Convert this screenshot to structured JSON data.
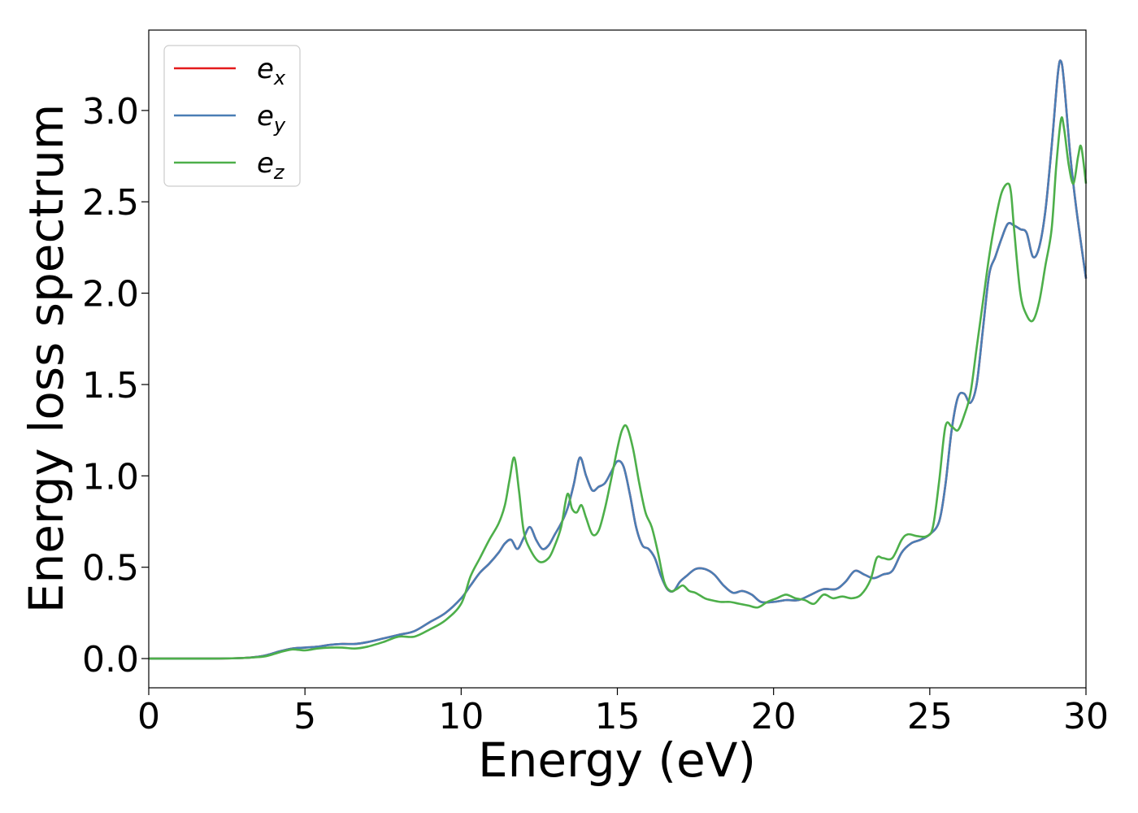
{
  "chart_data": {
    "type": "line",
    "xlabel": "Energy (eV)",
    "ylabel": "Energy loss spectrum",
    "xlim": [
      0,
      30
    ],
    "ylim": [
      -0.16,
      3.44
    ],
    "xticks": [
      0,
      5,
      10,
      15,
      20,
      25,
      30
    ],
    "xtick_labels": [
      "0",
      "5",
      "10",
      "15",
      "20",
      "25",
      "30"
    ],
    "yticks": [
      0.0,
      0.5,
      1.0,
      1.5,
      2.0,
      2.5,
      3.0
    ],
    "ytick_labels": [
      "0.0",
      "0.5",
      "1.0",
      "1.5",
      "2.0",
      "2.5",
      "3.0"
    ],
    "grid": false,
    "legend_position": "top-left",
    "series": [
      {
        "name": "e_x",
        "legend_base": "e",
        "legend_sub": "x",
        "color": "#e41a1c",
        "x": [
          0,
          2,
          3,
          3.5,
          3.8,
          4.2,
          4.6,
          5.0,
          5.4,
          5.8,
          6.2,
          6.6,
          7.0,
          7.5,
          8.0,
          8.5,
          9.0,
          9.5,
          10.0,
          10.3,
          10.6,
          10.9,
          11.2,
          11.4,
          11.6,
          11.8,
          12.0,
          12.2,
          12.4,
          12.6,
          12.8,
          13.0,
          13.2,
          13.4,
          13.6,
          13.8,
          14.0,
          14.2,
          14.4,
          14.6,
          14.8,
          15.0,
          15.2,
          15.4,
          15.6,
          15.8,
          16.0,
          16.2,
          16.4,
          16.6,
          16.8,
          17.0,
          17.2,
          17.5,
          17.8,
          18.1,
          18.4,
          18.7,
          19.0,
          19.3,
          19.6,
          20.0,
          20.4,
          20.8,
          21.2,
          21.6,
          22.0,
          22.3,
          22.6,
          22.9,
          23.2,
          23.5,
          23.8,
          24.1,
          24.4,
          24.7,
          25.0,
          25.3,
          25.5,
          25.7,
          25.9,
          26.1,
          26.3,
          26.5,
          26.7,
          26.9,
          27.1,
          27.3,
          27.5,
          27.7,
          27.9,
          28.1,
          28.3,
          28.5,
          28.7,
          28.9,
          29.1,
          29.2,
          29.3,
          29.5,
          29.7,
          30.0
        ],
        "values": [
          0,
          0,
          0.003,
          0.01,
          0.02,
          0.04,
          0.055,
          0.06,
          0.065,
          0.075,
          0.08,
          0.08,
          0.09,
          0.11,
          0.13,
          0.15,
          0.2,
          0.25,
          0.33,
          0.4,
          0.47,
          0.52,
          0.58,
          0.63,
          0.65,
          0.6,
          0.66,
          0.72,
          0.65,
          0.6,
          0.62,
          0.68,
          0.74,
          0.82,
          0.95,
          1.1,
          1.0,
          0.92,
          0.94,
          0.96,
          1.02,
          1.08,
          1.05,
          0.9,
          0.72,
          0.62,
          0.6,
          0.55,
          0.45,
          0.38,
          0.37,
          0.42,
          0.45,
          0.49,
          0.49,
          0.46,
          0.4,
          0.36,
          0.37,
          0.35,
          0.31,
          0.31,
          0.32,
          0.32,
          0.35,
          0.38,
          0.38,
          0.42,
          0.48,
          0.46,
          0.44,
          0.46,
          0.48,
          0.58,
          0.63,
          0.65,
          0.68,
          0.75,
          0.95,
          1.25,
          1.43,
          1.45,
          1.4,
          1.5,
          1.8,
          2.1,
          2.2,
          2.3,
          2.38,
          2.37,
          2.35,
          2.33,
          2.2,
          2.25,
          2.45,
          2.8,
          3.2,
          3.27,
          3.15,
          2.75,
          2.45,
          2.08
        ]
      },
      {
        "name": "e_y",
        "legend_base": "e",
        "legend_sub": "y",
        "color": "#4a7eb5",
        "x": [
          0,
          2,
          3,
          3.5,
          3.8,
          4.2,
          4.6,
          5.0,
          5.4,
          5.8,
          6.2,
          6.6,
          7.0,
          7.5,
          8.0,
          8.5,
          9.0,
          9.5,
          10.0,
          10.3,
          10.6,
          10.9,
          11.2,
          11.4,
          11.6,
          11.8,
          12.0,
          12.2,
          12.4,
          12.6,
          12.8,
          13.0,
          13.2,
          13.4,
          13.6,
          13.8,
          14.0,
          14.2,
          14.4,
          14.6,
          14.8,
          15.0,
          15.2,
          15.4,
          15.6,
          15.8,
          16.0,
          16.2,
          16.4,
          16.6,
          16.8,
          17.0,
          17.2,
          17.5,
          17.8,
          18.1,
          18.4,
          18.7,
          19.0,
          19.3,
          19.6,
          20.0,
          20.4,
          20.8,
          21.2,
          21.6,
          22.0,
          22.3,
          22.6,
          22.9,
          23.2,
          23.5,
          23.8,
          24.1,
          24.4,
          24.7,
          25.0,
          25.3,
          25.5,
          25.7,
          25.9,
          26.1,
          26.3,
          26.5,
          26.7,
          26.9,
          27.1,
          27.3,
          27.5,
          27.7,
          27.9,
          28.1,
          28.3,
          28.5,
          28.7,
          28.9,
          29.1,
          29.2,
          29.3,
          29.5,
          29.7,
          30.0
        ],
        "values": [
          0,
          0,
          0.003,
          0.01,
          0.02,
          0.04,
          0.055,
          0.06,
          0.065,
          0.075,
          0.08,
          0.08,
          0.09,
          0.11,
          0.13,
          0.15,
          0.2,
          0.25,
          0.33,
          0.4,
          0.47,
          0.52,
          0.58,
          0.63,
          0.65,
          0.6,
          0.66,
          0.72,
          0.65,
          0.6,
          0.62,
          0.68,
          0.74,
          0.82,
          0.95,
          1.1,
          1.0,
          0.92,
          0.94,
          0.96,
          1.02,
          1.08,
          1.05,
          0.9,
          0.72,
          0.62,
          0.6,
          0.55,
          0.45,
          0.38,
          0.37,
          0.42,
          0.45,
          0.49,
          0.49,
          0.46,
          0.4,
          0.36,
          0.37,
          0.35,
          0.31,
          0.31,
          0.32,
          0.32,
          0.35,
          0.38,
          0.38,
          0.42,
          0.48,
          0.46,
          0.44,
          0.46,
          0.48,
          0.58,
          0.63,
          0.65,
          0.68,
          0.75,
          0.95,
          1.25,
          1.43,
          1.45,
          1.4,
          1.5,
          1.8,
          2.1,
          2.2,
          2.3,
          2.38,
          2.37,
          2.35,
          2.33,
          2.2,
          2.25,
          2.45,
          2.8,
          3.2,
          3.27,
          3.15,
          2.75,
          2.45,
          2.08
        ]
      },
      {
        "name": "e_z",
        "legend_base": "e",
        "legend_sub": "z",
        "color": "#4daf4a",
        "x": [
          0,
          2,
          3,
          3.5,
          3.8,
          4.2,
          4.6,
          5.0,
          5.4,
          5.8,
          6.2,
          6.6,
          7.0,
          7.5,
          8.0,
          8.5,
          9.0,
          9.5,
          10.0,
          10.3,
          10.6,
          10.9,
          11.2,
          11.4,
          11.55,
          11.7,
          11.85,
          12.0,
          12.2,
          12.5,
          12.8,
          13.0,
          13.2,
          13.4,
          13.55,
          13.7,
          13.85,
          14.0,
          14.2,
          14.4,
          14.6,
          14.8,
          15.0,
          15.15,
          15.3,
          15.5,
          15.7,
          15.9,
          16.1,
          16.3,
          16.5,
          16.7,
          16.9,
          17.1,
          17.3,
          17.5,
          17.8,
          18.0,
          18.3,
          18.6,
          18.9,
          19.2,
          19.5,
          19.8,
          20.1,
          20.4,
          20.7,
          21.0,
          21.3,
          21.6,
          21.9,
          22.2,
          22.5,
          22.8,
          23.1,
          23.3,
          23.5,
          23.8,
          24.1,
          24.3,
          24.6,
          24.9,
          25.1,
          25.3,
          25.5,
          25.7,
          25.9,
          26.1,
          26.3,
          26.5,
          26.7,
          26.9,
          27.1,
          27.3,
          27.5,
          27.6,
          27.7,
          27.9,
          28.1,
          28.3,
          28.5,
          28.7,
          28.9,
          29.05,
          29.2,
          29.3,
          29.45,
          29.6,
          29.75,
          29.85,
          30.0
        ],
        "values": [
          0,
          0,
          0.003,
          0.008,
          0.015,
          0.035,
          0.05,
          0.045,
          0.055,
          0.06,
          0.06,
          0.055,
          0.065,
          0.09,
          0.12,
          0.12,
          0.16,
          0.21,
          0.3,
          0.45,
          0.55,
          0.65,
          0.74,
          0.84,
          0.98,
          1.1,
          0.92,
          0.7,
          0.6,
          0.53,
          0.55,
          0.62,
          0.72,
          0.9,
          0.82,
          0.8,
          0.84,
          0.77,
          0.68,
          0.7,
          0.82,
          0.98,
          1.15,
          1.25,
          1.27,
          1.15,
          0.96,
          0.8,
          0.72,
          0.58,
          0.42,
          0.37,
          0.38,
          0.4,
          0.37,
          0.36,
          0.33,
          0.32,
          0.31,
          0.31,
          0.3,
          0.29,
          0.28,
          0.31,
          0.33,
          0.35,
          0.33,
          0.32,
          0.3,
          0.35,
          0.33,
          0.34,
          0.33,
          0.35,
          0.43,
          0.55,
          0.55,
          0.55,
          0.65,
          0.68,
          0.67,
          0.67,
          0.72,
          0.97,
          1.27,
          1.27,
          1.25,
          1.33,
          1.45,
          1.7,
          1.95,
          2.2,
          2.4,
          2.55,
          2.6,
          2.55,
          2.35,
          2.0,
          1.88,
          1.85,
          1.95,
          2.15,
          2.35,
          2.7,
          2.95,
          2.9,
          2.7,
          2.6,
          2.75,
          2.8,
          2.6
        ]
      }
    ]
  }
}
